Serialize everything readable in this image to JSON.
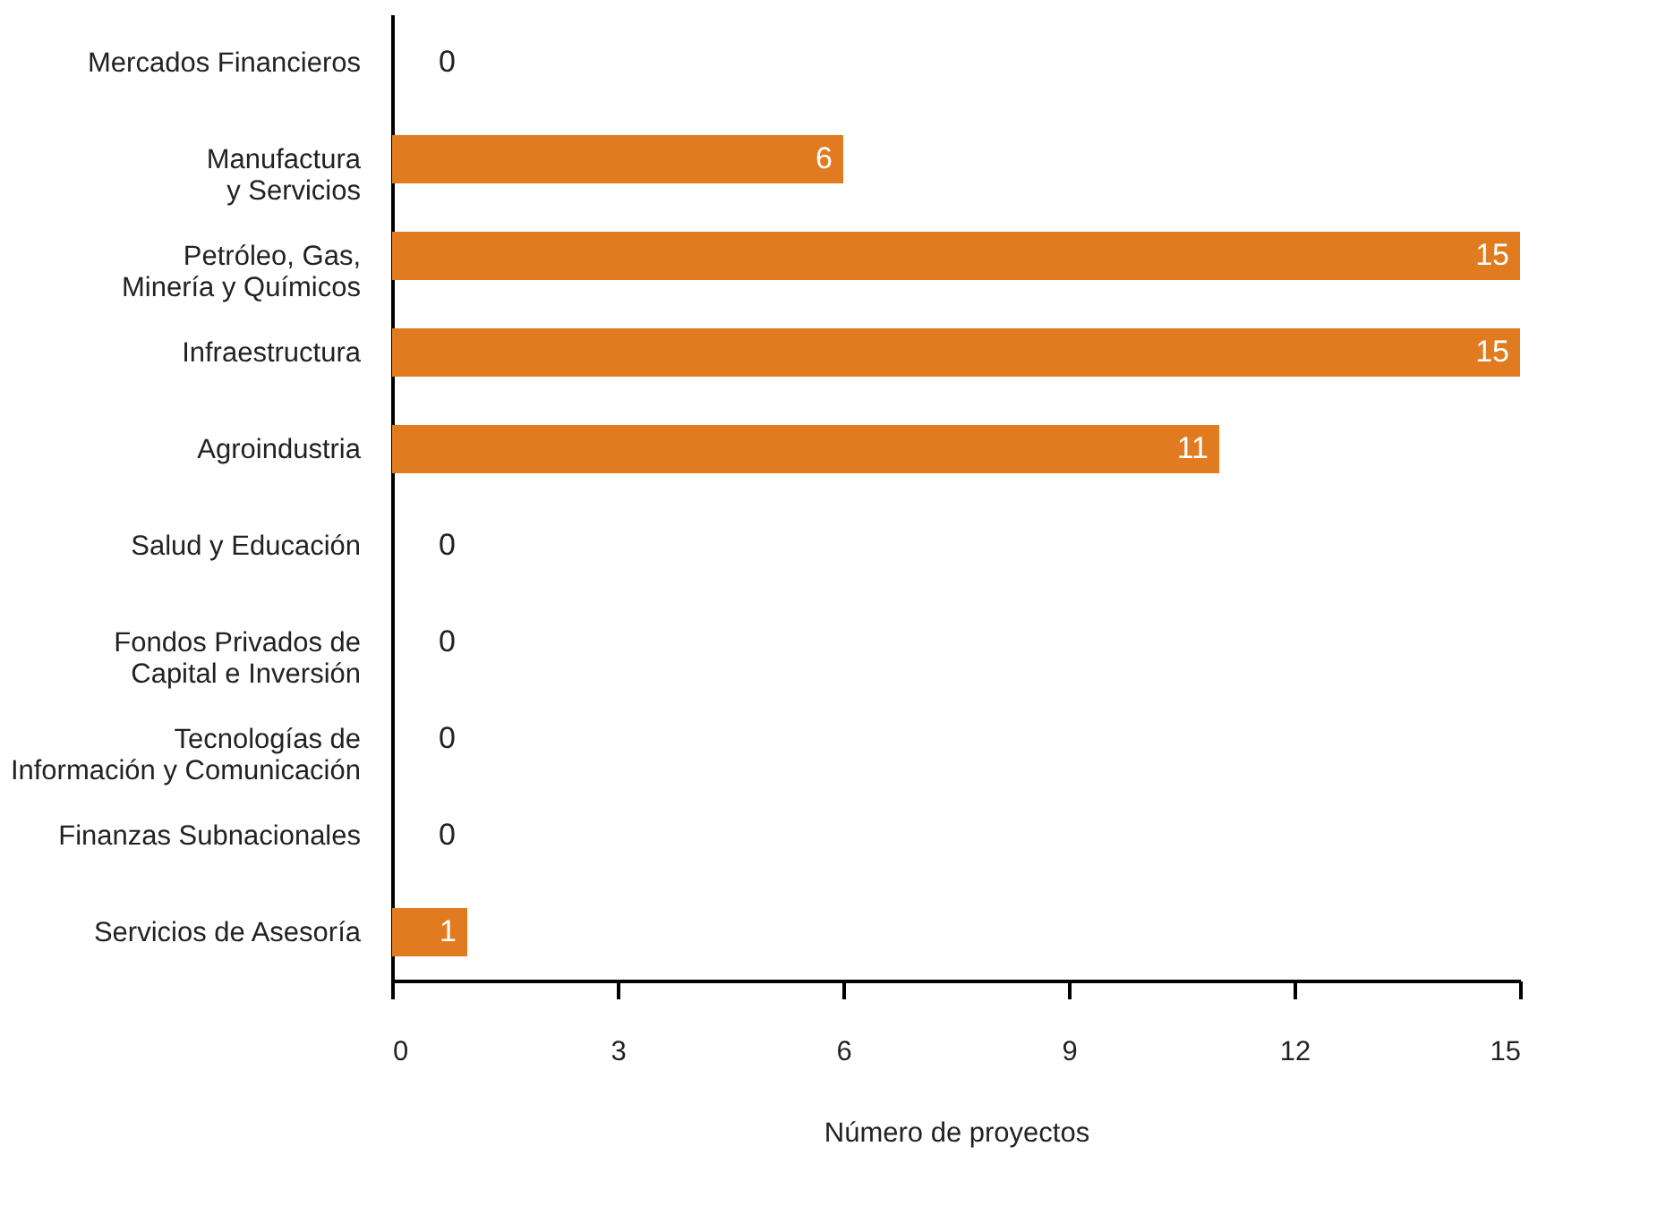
{
  "chart_data": {
    "type": "bar",
    "orientation": "horizontal",
    "xlabel": "Número de proyectos",
    "categories": [
      "Mercados Financieros",
      "Manufactura\ny Servicios",
      "Petróleo, Gas,\nMinería y Químicos",
      "Infraestructura",
      "Agroindustria",
      "Salud y Educación",
      "Fondos Privados de\nCapital e Inversión",
      "Tecnologías de\nInformación y Comunicación",
      "Finanzas Subnacionales",
      "Servicios de Asesoría"
    ],
    "values": [
      0,
      6,
      15,
      15,
      11,
      0,
      0,
      0,
      0,
      1
    ],
    "color": "#e07b20",
    "xlim": [
      0,
      15
    ],
    "xticks": [
      0,
      3,
      6,
      9,
      12,
      15
    ],
    "grid": false,
    "data_labels": true
  }
}
